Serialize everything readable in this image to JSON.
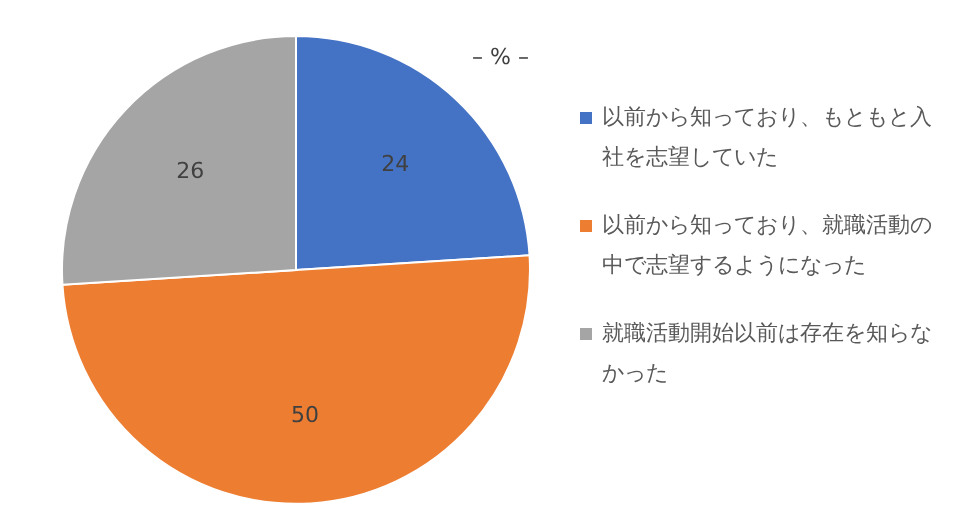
{
  "chart_data": {
    "type": "pie",
    "subtitle": "– % –",
    "categories": [
      "以前から知っており、もともと入社を志望していた",
      "以前から知っており、就職活動の中で志望するようになった",
      "就職活動開始以前は存在を知らなかった"
    ],
    "values": [
      24,
      50,
      26
    ],
    "colors": [
      "#4472c4",
      "#ed7d31",
      "#a5a5a5"
    ],
    "data_labels": true,
    "legend": "right"
  }
}
